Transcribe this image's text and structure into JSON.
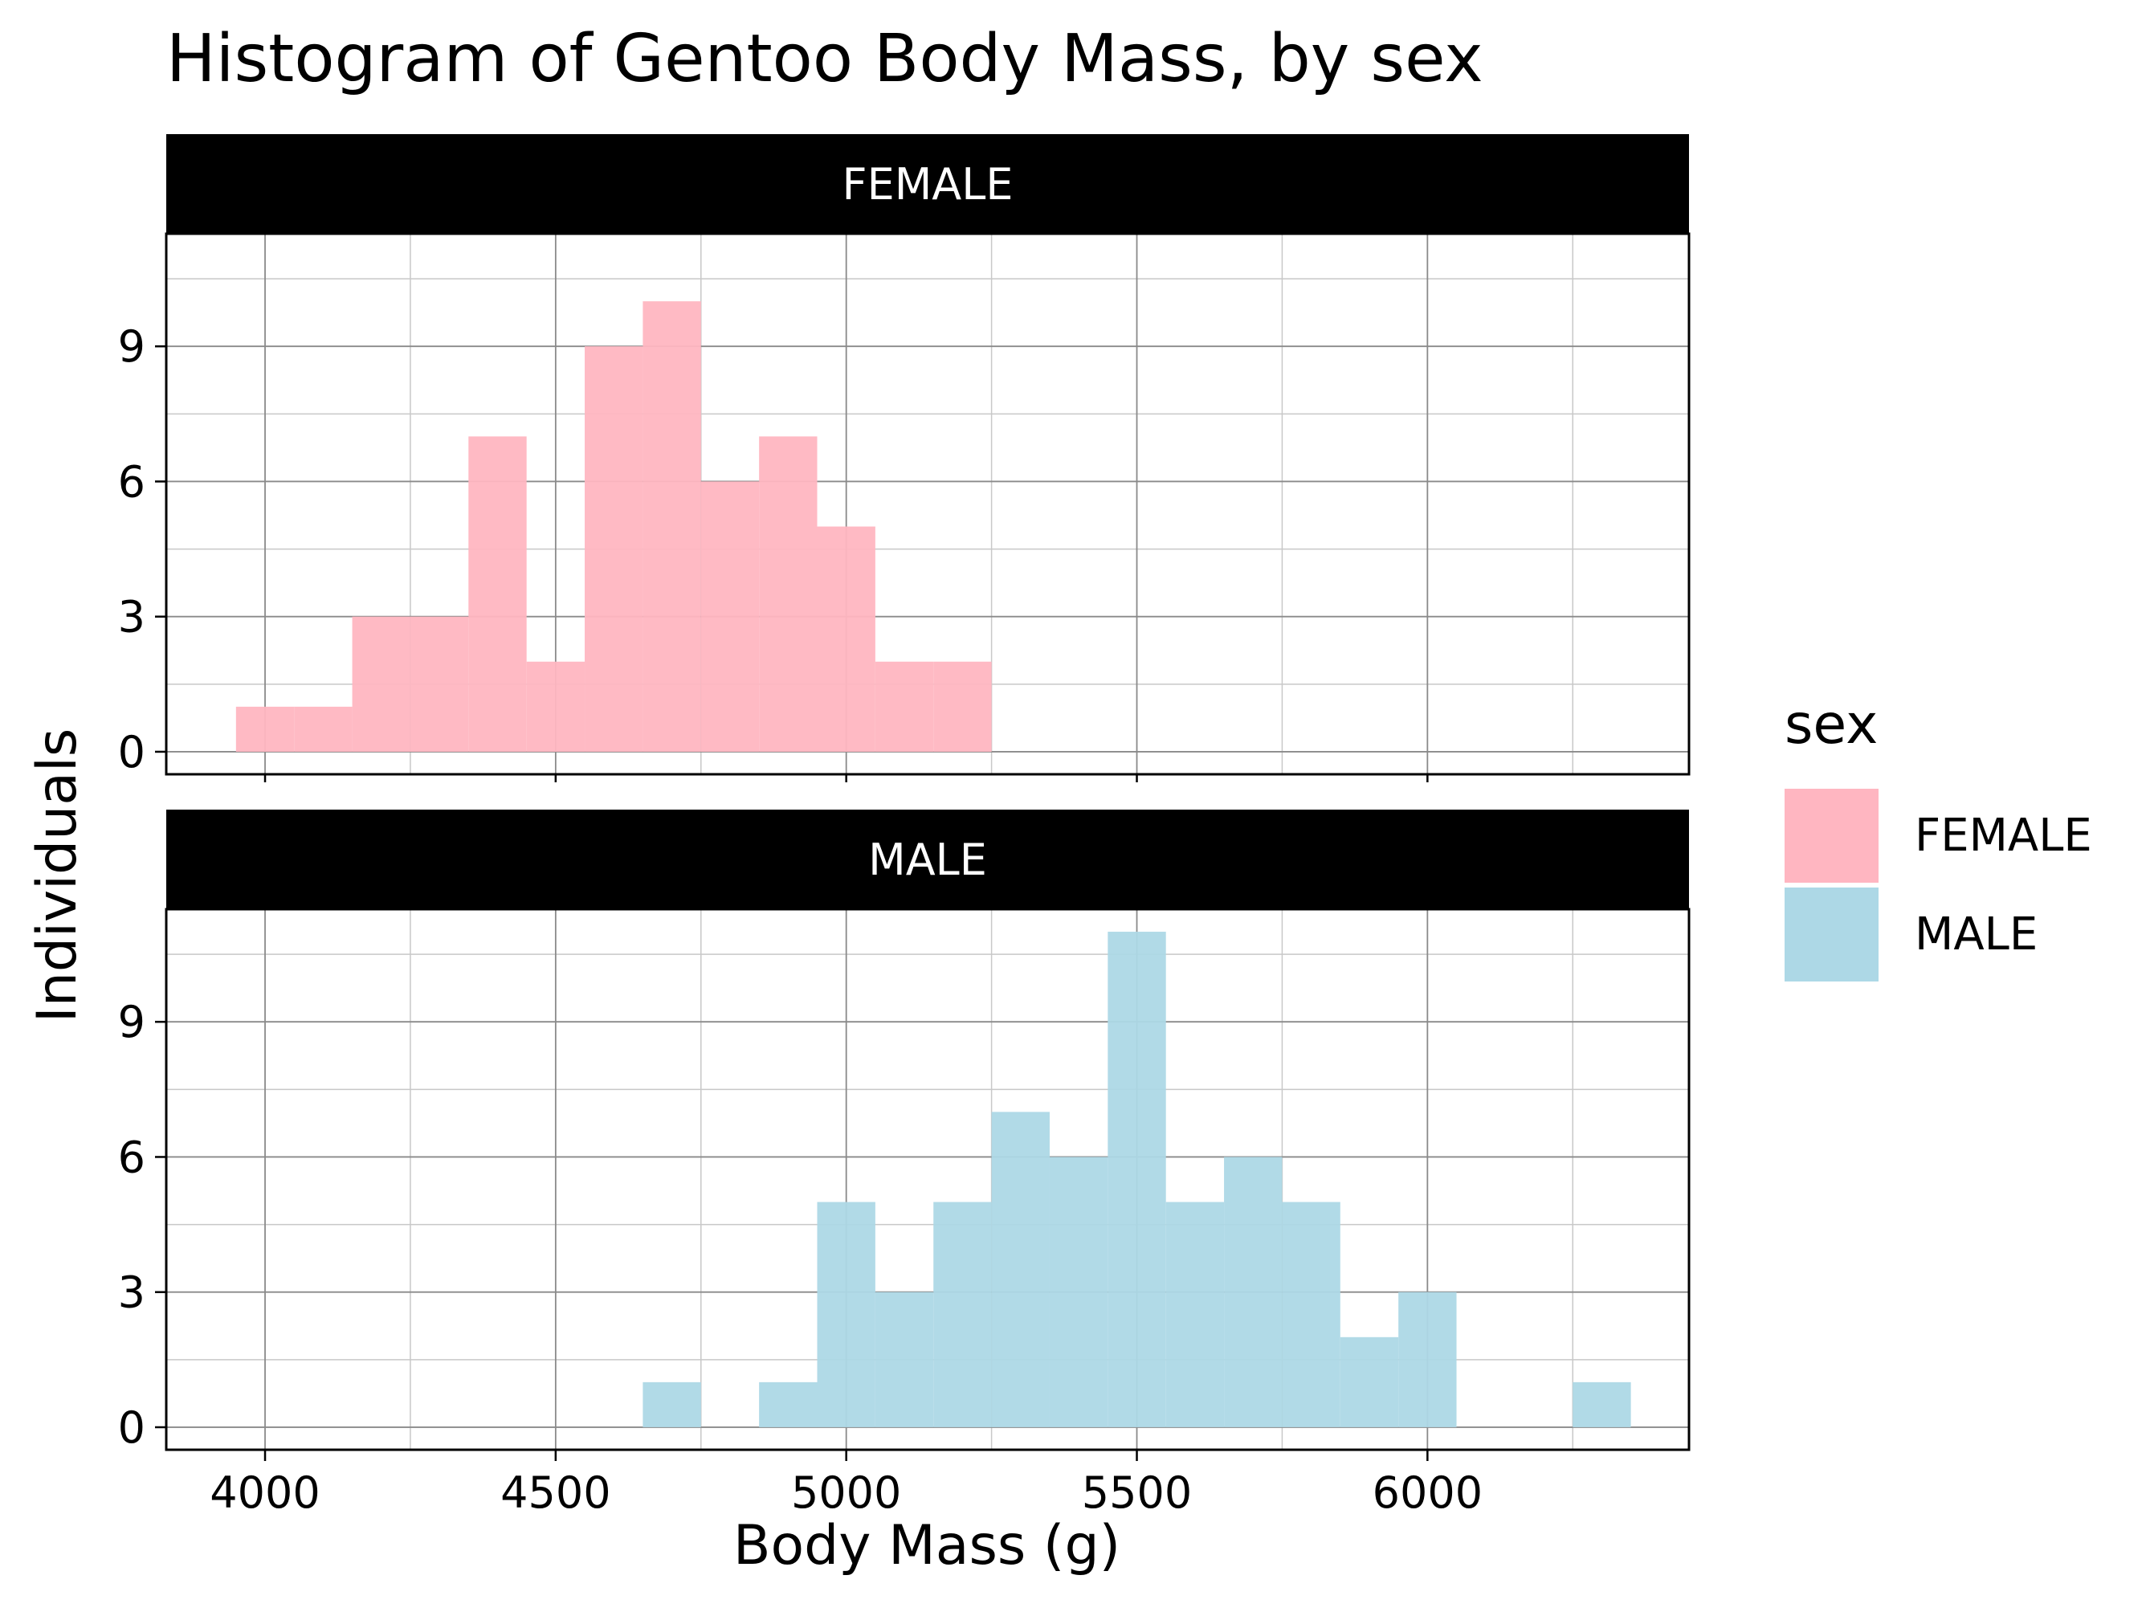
{
  "chart_data": {
    "type": "bar",
    "title": "Histogram of Gentoo Body Mass, by sex",
    "xlabel": "Body Mass (g)",
    "ylabel": "Individuals",
    "xlim": [
      3830,
      6450
    ],
    "ylim": [
      -0.5,
      11.5
    ],
    "x_ticks": [
      4000,
      4500,
      5000,
      5500,
      6000
    ],
    "y_ticks": [
      0,
      3,
      6,
      9
    ],
    "bin_width": 100,
    "grid": true,
    "legend": {
      "title": "sex",
      "position": "right",
      "entries": [
        {
          "label": "FEMALE",
          "color": "#FFB6C1"
        },
        {
          "label": "MALE",
          "color": "#ADD8E6"
        }
      ]
    },
    "panels": [
      {
        "name": "FEMALE",
        "color": "#FFB6C1",
        "bins": [
          {
            "x": 4000,
            "count": 1
          },
          {
            "x": 4100,
            "count": 1
          },
          {
            "x": 4200,
            "count": 3
          },
          {
            "x": 4300,
            "count": 3
          },
          {
            "x": 4400,
            "count": 7
          },
          {
            "x": 4500,
            "count": 2
          },
          {
            "x": 4600,
            "count": 9
          },
          {
            "x": 4700,
            "count": 10
          },
          {
            "x": 4800,
            "count": 6
          },
          {
            "x": 4900,
            "count": 7
          },
          {
            "x": 5000,
            "count": 5
          },
          {
            "x": 5100,
            "count": 2
          },
          {
            "x": 5200,
            "count": 2
          }
        ]
      },
      {
        "name": "MALE",
        "color": "#ADD8E6",
        "bins": [
          {
            "x": 4700,
            "count": 1
          },
          {
            "x": 4900,
            "count": 1
          },
          {
            "x": 5000,
            "count": 5
          },
          {
            "x": 5100,
            "count": 3
          },
          {
            "x": 5200,
            "count": 5
          },
          {
            "x": 5300,
            "count": 7
          },
          {
            "x": 5400,
            "count": 6
          },
          {
            "x": 5500,
            "count": 11
          },
          {
            "x": 5600,
            "count": 5
          },
          {
            "x": 5700,
            "count": 6
          },
          {
            "x": 5800,
            "count": 5
          },
          {
            "x": 5900,
            "count": 2
          },
          {
            "x": 6000,
            "count": 3
          },
          {
            "x": 6300,
            "count": 1
          }
        ]
      }
    ]
  }
}
